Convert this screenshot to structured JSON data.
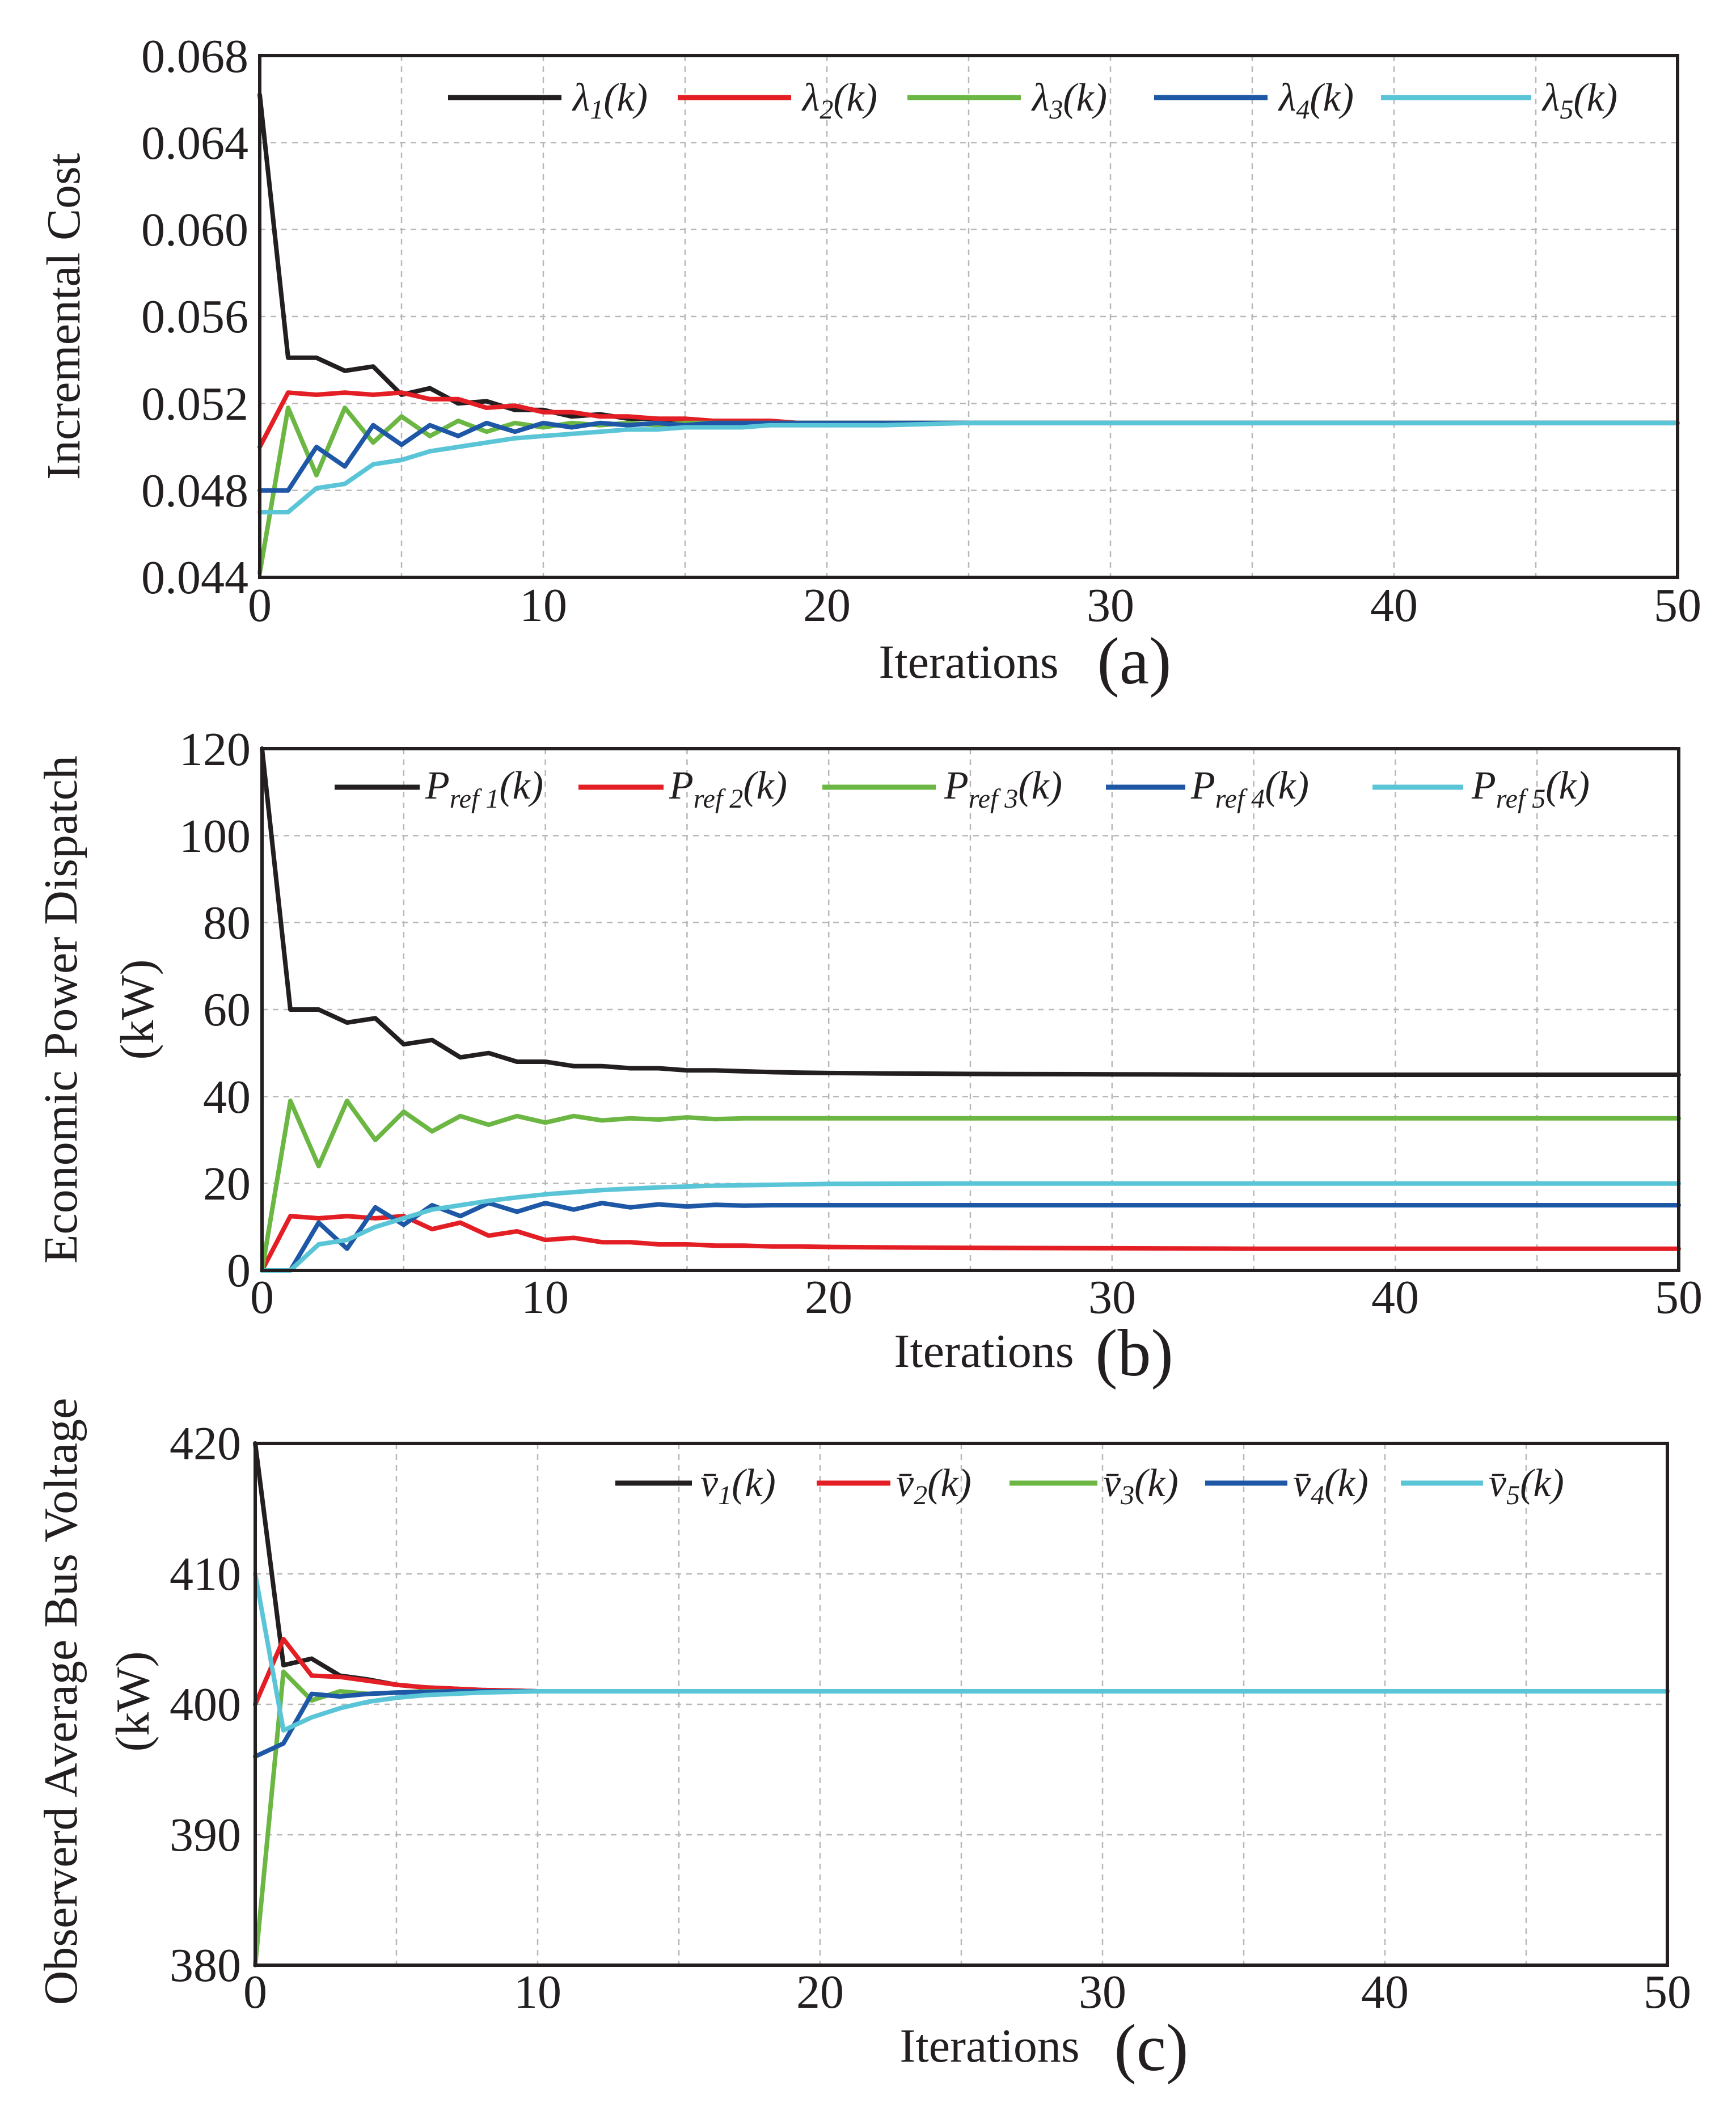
{
  "chart_data": [
    {
      "type": "line",
      "panel_label": "(a)",
      "xlabel": "Iterations",
      "ylabel": "Incremental Cost",
      "xlim": [
        0,
        50
      ],
      "ylim": [
        0.044,
        0.068
      ],
      "xticks": [
        "0",
        "10",
        "20",
        "30",
        "40",
        "50"
      ],
      "yticks": [
        "0.044",
        "0.048",
        "0.052",
        "0.056",
        "0.060",
        "0.064",
        "0.068"
      ],
      "grid": true,
      "legend_position": "top",
      "x": [
        0,
        1,
        2,
        3,
        4,
        5,
        6,
        7,
        8,
        9,
        10,
        11,
        12,
        13,
        14,
        15,
        16,
        17,
        18,
        19,
        20,
        22,
        25,
        30,
        35,
        40,
        45,
        50
      ],
      "series": [
        {
          "name": "λ1(k)",
          "color": "#231f20",
          "values": [
            0.0662,
            0.0541,
            0.0541,
            0.0535,
            0.0537,
            0.0524,
            0.0527,
            0.052,
            0.0521,
            0.0517,
            0.0517,
            0.0514,
            0.0515,
            0.0513,
            0.0513,
            0.0512,
            0.0512,
            0.0512,
            0.0511,
            0.0511,
            0.0511,
            0.0511,
            0.0511,
            0.0511,
            0.0511,
            0.0511,
            0.0511,
            0.0511
          ]
        },
        {
          "name": "λ2(k)",
          "color": "#e31e24",
          "values": [
            0.05,
            0.0525,
            0.0524,
            0.0525,
            0.0524,
            0.0525,
            0.0522,
            0.0522,
            0.0518,
            0.0519,
            0.0516,
            0.0516,
            0.0514,
            0.0514,
            0.0513,
            0.0513,
            0.0512,
            0.0512,
            0.0512,
            0.0511,
            0.0511,
            0.0511,
            0.0511,
            0.0511,
            0.0511,
            0.0511,
            0.0511,
            0.0511
          ]
        },
        {
          "name": "λ3(k)",
          "color": "#6cb744",
          "values": [
            0.0442,
            0.0518,
            0.0487,
            0.0518,
            0.0502,
            0.0514,
            0.0505,
            0.0512,
            0.0507,
            0.0511,
            0.0509,
            0.0511,
            0.051,
            0.0511,
            0.051,
            0.0511,
            0.0511,
            0.0511,
            0.0511,
            0.0511,
            0.0511,
            0.0511,
            0.0511,
            0.0511,
            0.0511,
            0.0511,
            0.0511,
            0.0511
          ]
        },
        {
          "name": "λ4(k)",
          "color": "#1d57a5",
          "values": [
            0.048,
            0.048,
            0.05,
            0.0491,
            0.051,
            0.0501,
            0.051,
            0.0505,
            0.0511,
            0.0507,
            0.0511,
            0.0509,
            0.0511,
            0.051,
            0.0511,
            0.051,
            0.0511,
            0.0511,
            0.0511,
            0.0511,
            0.0511,
            0.0511,
            0.0511,
            0.0511,
            0.0511,
            0.0511,
            0.0511,
            0.0511
          ]
        },
        {
          "name": "λ5(k)",
          "color": "#5bc5d8",
          "values": [
            0.047,
            0.047,
            0.0481,
            0.0483,
            0.0492,
            0.0494,
            0.0498,
            0.05,
            0.0502,
            0.0504,
            0.0505,
            0.0506,
            0.0507,
            0.0508,
            0.0508,
            0.0509,
            0.0509,
            0.0509,
            0.051,
            0.051,
            0.051,
            0.051,
            0.0511,
            0.0511,
            0.0511,
            0.0511,
            0.0511,
            0.0511
          ]
        }
      ]
    },
    {
      "type": "line",
      "panel_label": "(b)",
      "xlabel": "Iterations",
      "ylabel": "Economic Power Dispatch",
      "ylabel_line2": "(kW)",
      "xlim": [
        0,
        50
      ],
      "ylim": [
        0,
        120
      ],
      "xticks": [
        "0",
        "10",
        "20",
        "30",
        "40",
        "50"
      ],
      "yticks": [
        "0",
        "20",
        "40",
        "60",
        "80",
        "100",
        "120"
      ],
      "grid": true,
      "legend_position": "top",
      "x": [
        0,
        1,
        2,
        3,
        4,
        5,
        6,
        7,
        8,
        9,
        10,
        11,
        12,
        13,
        14,
        15,
        16,
        17,
        18,
        19,
        20,
        22,
        25,
        30,
        35,
        40,
        45,
        50
      ],
      "series": [
        {
          "name": "Pref1(k)",
          "color": "#231f20",
          "values": [
            120,
            60,
            60,
            57,
            58,
            52,
            53,
            49,
            50,
            48,
            48,
            47,
            47,
            46.5,
            46.5,
            46,
            46,
            45.8,
            45.6,
            45.5,
            45.4,
            45.3,
            45.2,
            45.1,
            45,
            45,
            45,
            45
          ]
        },
        {
          "name": "Pref2(k)",
          "color": "#e31e24",
          "values": [
            0,
            12.5,
            12,
            12.5,
            12,
            12.5,
            9.5,
            11,
            8,
            9,
            7,
            7.5,
            6.5,
            6.5,
            6,
            6,
            5.7,
            5.7,
            5.5,
            5.5,
            5.4,
            5.3,
            5.2,
            5.1,
            5,
            5,
            5,
            5
          ]
        },
        {
          "name": "Pref3(k)",
          "color": "#6cb744",
          "values": [
            0,
            39,
            24,
            39,
            30,
            36.5,
            32,
            35.5,
            33.5,
            35.5,
            34,
            35.5,
            34.5,
            35,
            34.7,
            35.2,
            34.8,
            35,
            35,
            35,
            35,
            35,
            35,
            35,
            35,
            35,
            35,
            35
          ]
        },
        {
          "name": "Pref4(k)",
          "color": "#1d57a5",
          "values": [
            0,
            0,
            11,
            5,
            14.5,
            10.5,
            15,
            12.5,
            15.5,
            13.5,
            15.5,
            14,
            15.5,
            14.5,
            15.2,
            14.7,
            15.1,
            14.9,
            15,
            15,
            15,
            15,
            15,
            15,
            15,
            15,
            15,
            15
          ]
        },
        {
          "name": "Pref5(k)",
          "color": "#5bc5d8",
          "values": [
            0,
            0,
            6,
            7,
            10,
            12,
            14,
            15,
            16,
            16.8,
            17.5,
            18,
            18.5,
            18.8,
            19.1,
            19.3,
            19.5,
            19.6,
            19.7,
            19.8,
            19.9,
            19.95,
            20,
            20,
            20,
            20,
            20,
            20
          ]
        }
      ]
    },
    {
      "type": "line",
      "panel_label": "(c)",
      "xlabel": "Iterations",
      "ylabel": "Observerd Average Bus Voltage",
      "ylabel_line2": "(kW)",
      "xlim": [
        0,
        50
      ],
      "ylim": [
        380,
        420
      ],
      "xticks": [
        "0",
        "10",
        "20",
        "30",
        "40",
        "50"
      ],
      "yticks": [
        "380",
        "390",
        "400",
        "410",
        "420"
      ],
      "grid": true,
      "legend_position": "top-right",
      "x": [
        0,
        1,
        2,
        3,
        4,
        5,
        6,
        7,
        8,
        9,
        10,
        11,
        12,
        15,
        20,
        30,
        40,
        50
      ],
      "series": [
        {
          "name": "v̄1(k)",
          "color": "#231f20",
          "values": [
            420,
            403,
            403.5,
            402.2,
            401.9,
            401.5,
            401.3,
            401.2,
            401.1,
            401.05,
            401,
            401,
            401,
            401,
            401,
            401,
            401,
            401
          ]
        },
        {
          "name": "v̄2(k)",
          "color": "#e31e24",
          "values": [
            400,
            405,
            402.2,
            402.1,
            401.8,
            401.5,
            401.3,
            401.2,
            401.1,
            401.05,
            401,
            401,
            401,
            401,
            401,
            401,
            401,
            401
          ]
        },
        {
          "name": "v̄3(k)",
          "color": "#6cb744",
          "values": [
            380,
            402.5,
            400.3,
            401,
            400.8,
            400.9,
            401,
            401,
            401,
            401,
            401,
            401,
            401,
            401,
            401,
            401,
            401,
            401
          ]
        },
        {
          "name": "v̄4(k)",
          "color": "#1d57a5",
          "values": [
            396,
            397,
            400.8,
            400.6,
            400.8,
            400.9,
            400.95,
            401,
            401,
            401,
            401,
            401,
            401,
            401,
            401,
            401,
            401,
            401
          ]
        },
        {
          "name": "v̄5(k)",
          "color": "#5bc5d8",
          "values": [
            410,
            398,
            399,
            399.7,
            400.2,
            400.5,
            400.7,
            400.8,
            400.9,
            400.95,
            401,
            401,
            401,
            401,
            401,
            401,
            401,
            401
          ]
        }
      ]
    }
  ]
}
